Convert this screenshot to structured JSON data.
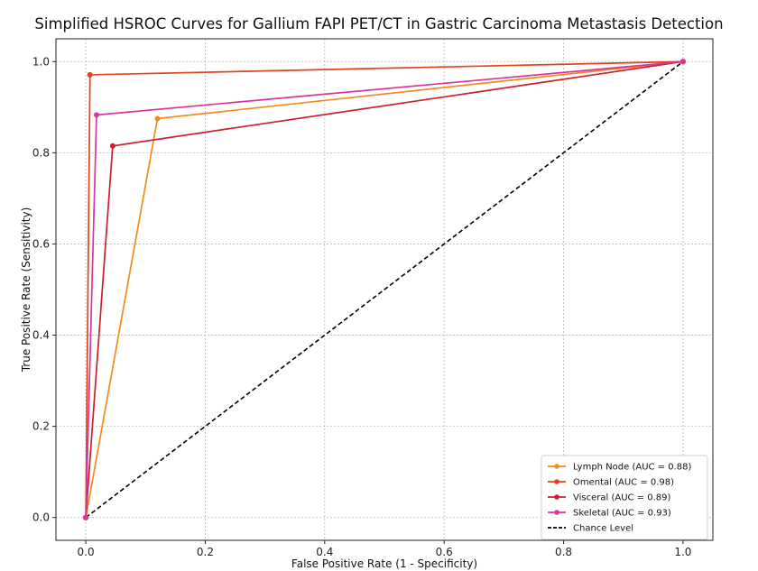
{
  "chart_data": {
    "type": "line",
    "title": "Simplified HSROC Curves for Gallium FAPI PET/CT in Gastric Carcinoma Metastasis Detection",
    "xlabel": "False Positive Rate (1 - Specificity)",
    "ylabel": "True Positive Rate (Sensitivity)",
    "xlim": [
      -0.05,
      1.05
    ],
    "ylim": [
      -0.05,
      1.05
    ],
    "xticks": [
      "0.0",
      "0.2",
      "0.4",
      "0.6",
      "0.8",
      "1.0"
    ],
    "yticks": [
      "0.0",
      "0.2",
      "0.4",
      "0.6",
      "0.8",
      "1.0"
    ],
    "grid": true,
    "legend_position": "lower-right",
    "series": [
      {
        "name": "Lymph Node (AUC = 0.88)",
        "color": "#f28a1e",
        "marker": "circle",
        "x": [
          0.0,
          0.12,
          1.0
        ],
        "y": [
          0.0,
          0.875,
          1.0
        ]
      },
      {
        "name": "Omental (AUC = 0.98)",
        "color": "#e0441c",
        "marker": "circle",
        "x": [
          0.0,
          0.007,
          1.0
        ],
        "y": [
          0.0,
          0.971,
          1.0
        ]
      },
      {
        "name": "Visceral (AUC = 0.89)",
        "color": "#c9202e",
        "marker": "circle",
        "x": [
          0.0,
          0.045,
          1.0
        ],
        "y": [
          0.0,
          0.815,
          1.0
        ]
      },
      {
        "name": "Skeletal (AUC = 0.93)",
        "color": "#d9359b",
        "marker": "circle",
        "x": [
          0.0,
          0.018,
          1.0
        ],
        "y": [
          0.0,
          0.883,
          1.0
        ]
      }
    ],
    "reference_line": {
      "name": "Chance Level",
      "color": "#000000",
      "style": "dashed",
      "x": [
        0.0,
        1.0
      ],
      "y": [
        0.0,
        1.0
      ]
    }
  }
}
